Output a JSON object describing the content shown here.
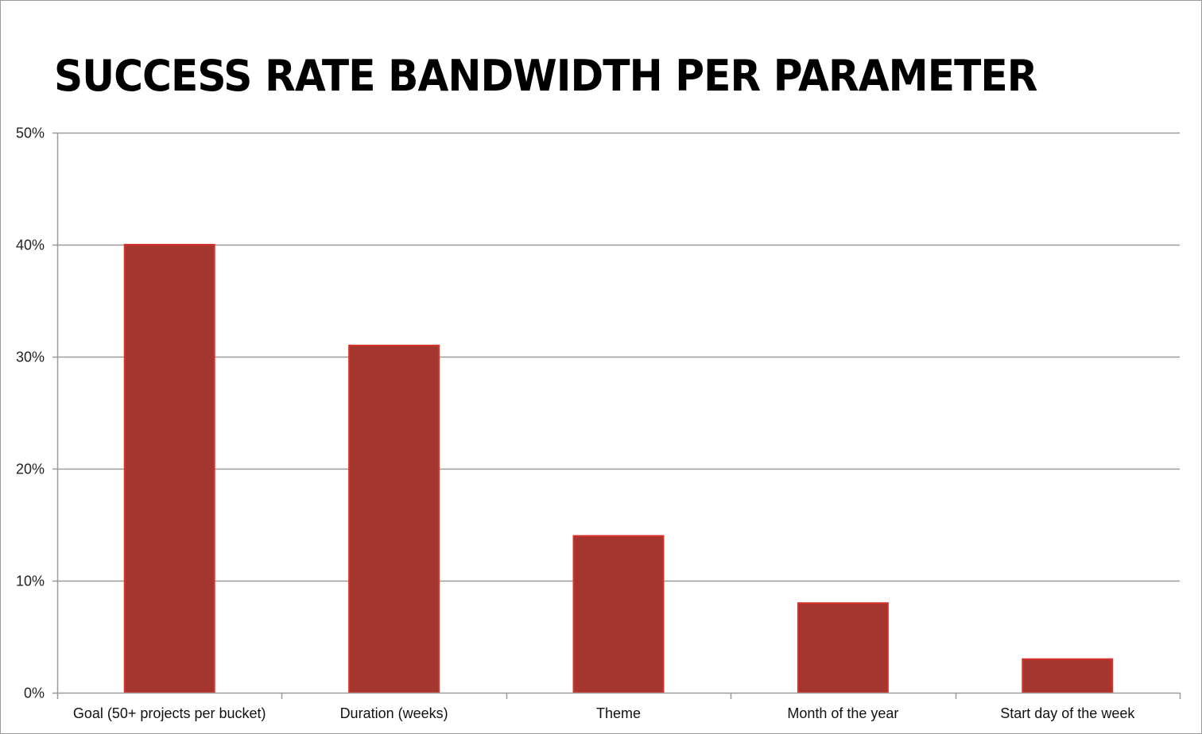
{
  "chart_data": {
    "type": "bar",
    "title": "SUCCESS RATE BANDWIDTH PER PARAMETER",
    "xlabel": "",
    "ylabel": "",
    "categories": [
      "Goal (50+ projects per bucket)",
      "Duration (weeks)",
      "Theme",
      "Month of the year",
      "Start day of the week"
    ],
    "values": [
      40,
      31,
      14,
      8,
      3
    ],
    "ylim": [
      0,
      50
    ],
    "yticks": [
      0,
      10,
      20,
      30,
      40,
      50
    ],
    "ytick_labels": [
      "0%",
      "10%",
      "20%",
      "30%",
      "40%",
      "50%"
    ],
    "grid": true,
    "legend": "none",
    "colors": {
      "bar_fill": "#a5352f",
      "bar_edge": "#d8322c",
      "gridline": "#9a9a9a"
    }
  }
}
